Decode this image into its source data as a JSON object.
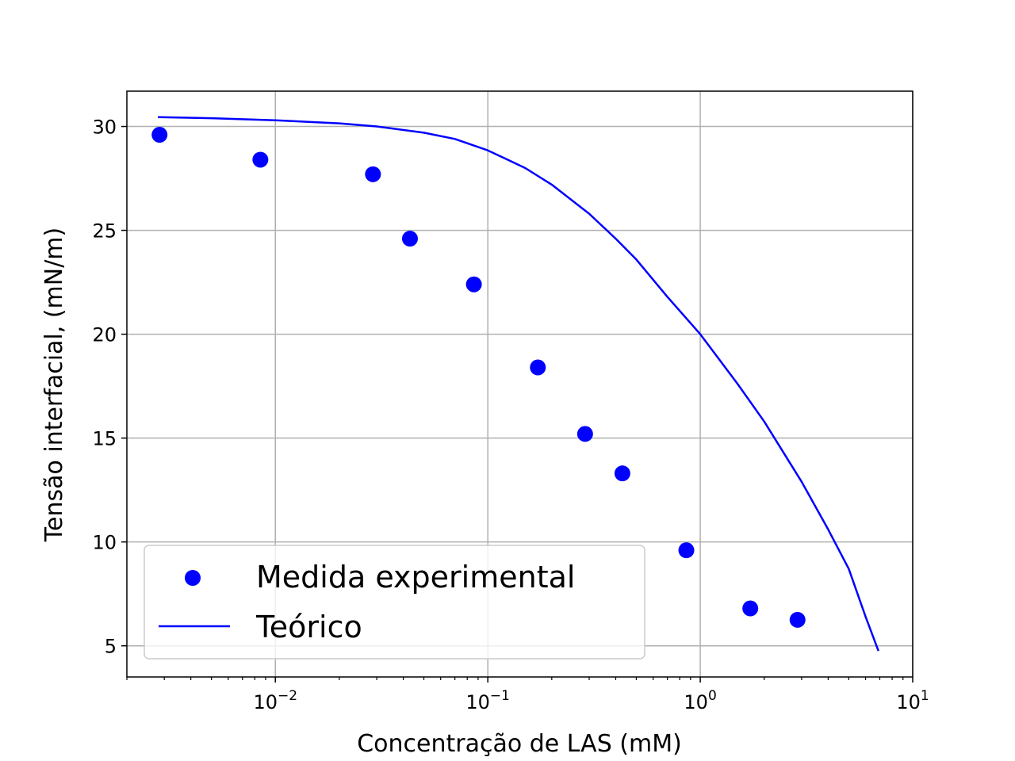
{
  "chart_data": {
    "type": "scatter",
    "title": "",
    "xlabel": "Concentração de LAS (mM)",
    "ylabel": "Tensão interfacial, (mN/m)",
    "xscale": "log",
    "xlim": [
      0.002,
      10
    ],
    "ylim": [
      3.5,
      31.7
    ],
    "grid": true,
    "legend_position": "lower-left",
    "x_ticks": [
      {
        "value": 0.01,
        "base": "10",
        "exp": "−2"
      },
      {
        "value": 0.1,
        "base": "10",
        "exp": "−1"
      },
      {
        "value": 1,
        "base": "10",
        "exp": "0"
      },
      {
        "value": 10,
        "base": "10",
        "exp": "1"
      }
    ],
    "y_ticks": [
      {
        "value": 5,
        "label": "5"
      },
      {
        "value": 10,
        "label": "10"
      },
      {
        "value": 15,
        "label": "15"
      },
      {
        "value": 20,
        "label": "20"
      },
      {
        "value": 25,
        "label": "25"
      },
      {
        "value": 30,
        "label": "30"
      }
    ],
    "series": [
      {
        "name": "Medida experimental",
        "kind": "scatter",
        "color": "#0000ff",
        "points": [
          {
            "x": 0.00285,
            "y": 29.6
          },
          {
            "x": 0.0085,
            "y": 28.4
          },
          {
            "x": 0.0288,
            "y": 27.7
          },
          {
            "x": 0.043,
            "y": 24.6
          },
          {
            "x": 0.086,
            "y": 22.4
          },
          {
            "x": 0.172,
            "y": 18.4
          },
          {
            "x": 0.287,
            "y": 15.2
          },
          {
            "x": 0.43,
            "y": 13.3
          },
          {
            "x": 0.86,
            "y": 9.6
          },
          {
            "x": 1.72,
            "y": 6.8
          },
          {
            "x": 2.87,
            "y": 6.25
          }
        ]
      },
      {
        "name": "Teórico",
        "kind": "line",
        "color": "#0000ff",
        "points": [
          {
            "x": 0.0028,
            "y": 30.45
          },
          {
            "x": 0.005,
            "y": 30.4
          },
          {
            "x": 0.01,
            "y": 30.3
          },
          {
            "x": 0.02,
            "y": 30.15
          },
          {
            "x": 0.03,
            "y": 30.0
          },
          {
            "x": 0.05,
            "y": 29.7
          },
          {
            "x": 0.07,
            "y": 29.4
          },
          {
            "x": 0.1,
            "y": 28.85
          },
          {
            "x": 0.15,
            "y": 28.0
          },
          {
            "x": 0.2,
            "y": 27.2
          },
          {
            "x": 0.3,
            "y": 25.8
          },
          {
            "x": 0.4,
            "y": 24.6
          },
          {
            "x": 0.5,
            "y": 23.6
          },
          {
            "x": 0.7,
            "y": 21.8
          },
          {
            "x": 1.0,
            "y": 20.0
          },
          {
            "x": 1.5,
            "y": 17.6
          },
          {
            "x": 2.0,
            "y": 15.8
          },
          {
            "x": 3.0,
            "y": 12.9
          },
          {
            "x": 4.0,
            "y": 10.6
          },
          {
            "x": 5.0,
            "y": 8.7
          },
          {
            "x": 6.0,
            "y": 6.4
          },
          {
            "x": 6.9,
            "y": 4.75
          }
        ]
      }
    ]
  }
}
